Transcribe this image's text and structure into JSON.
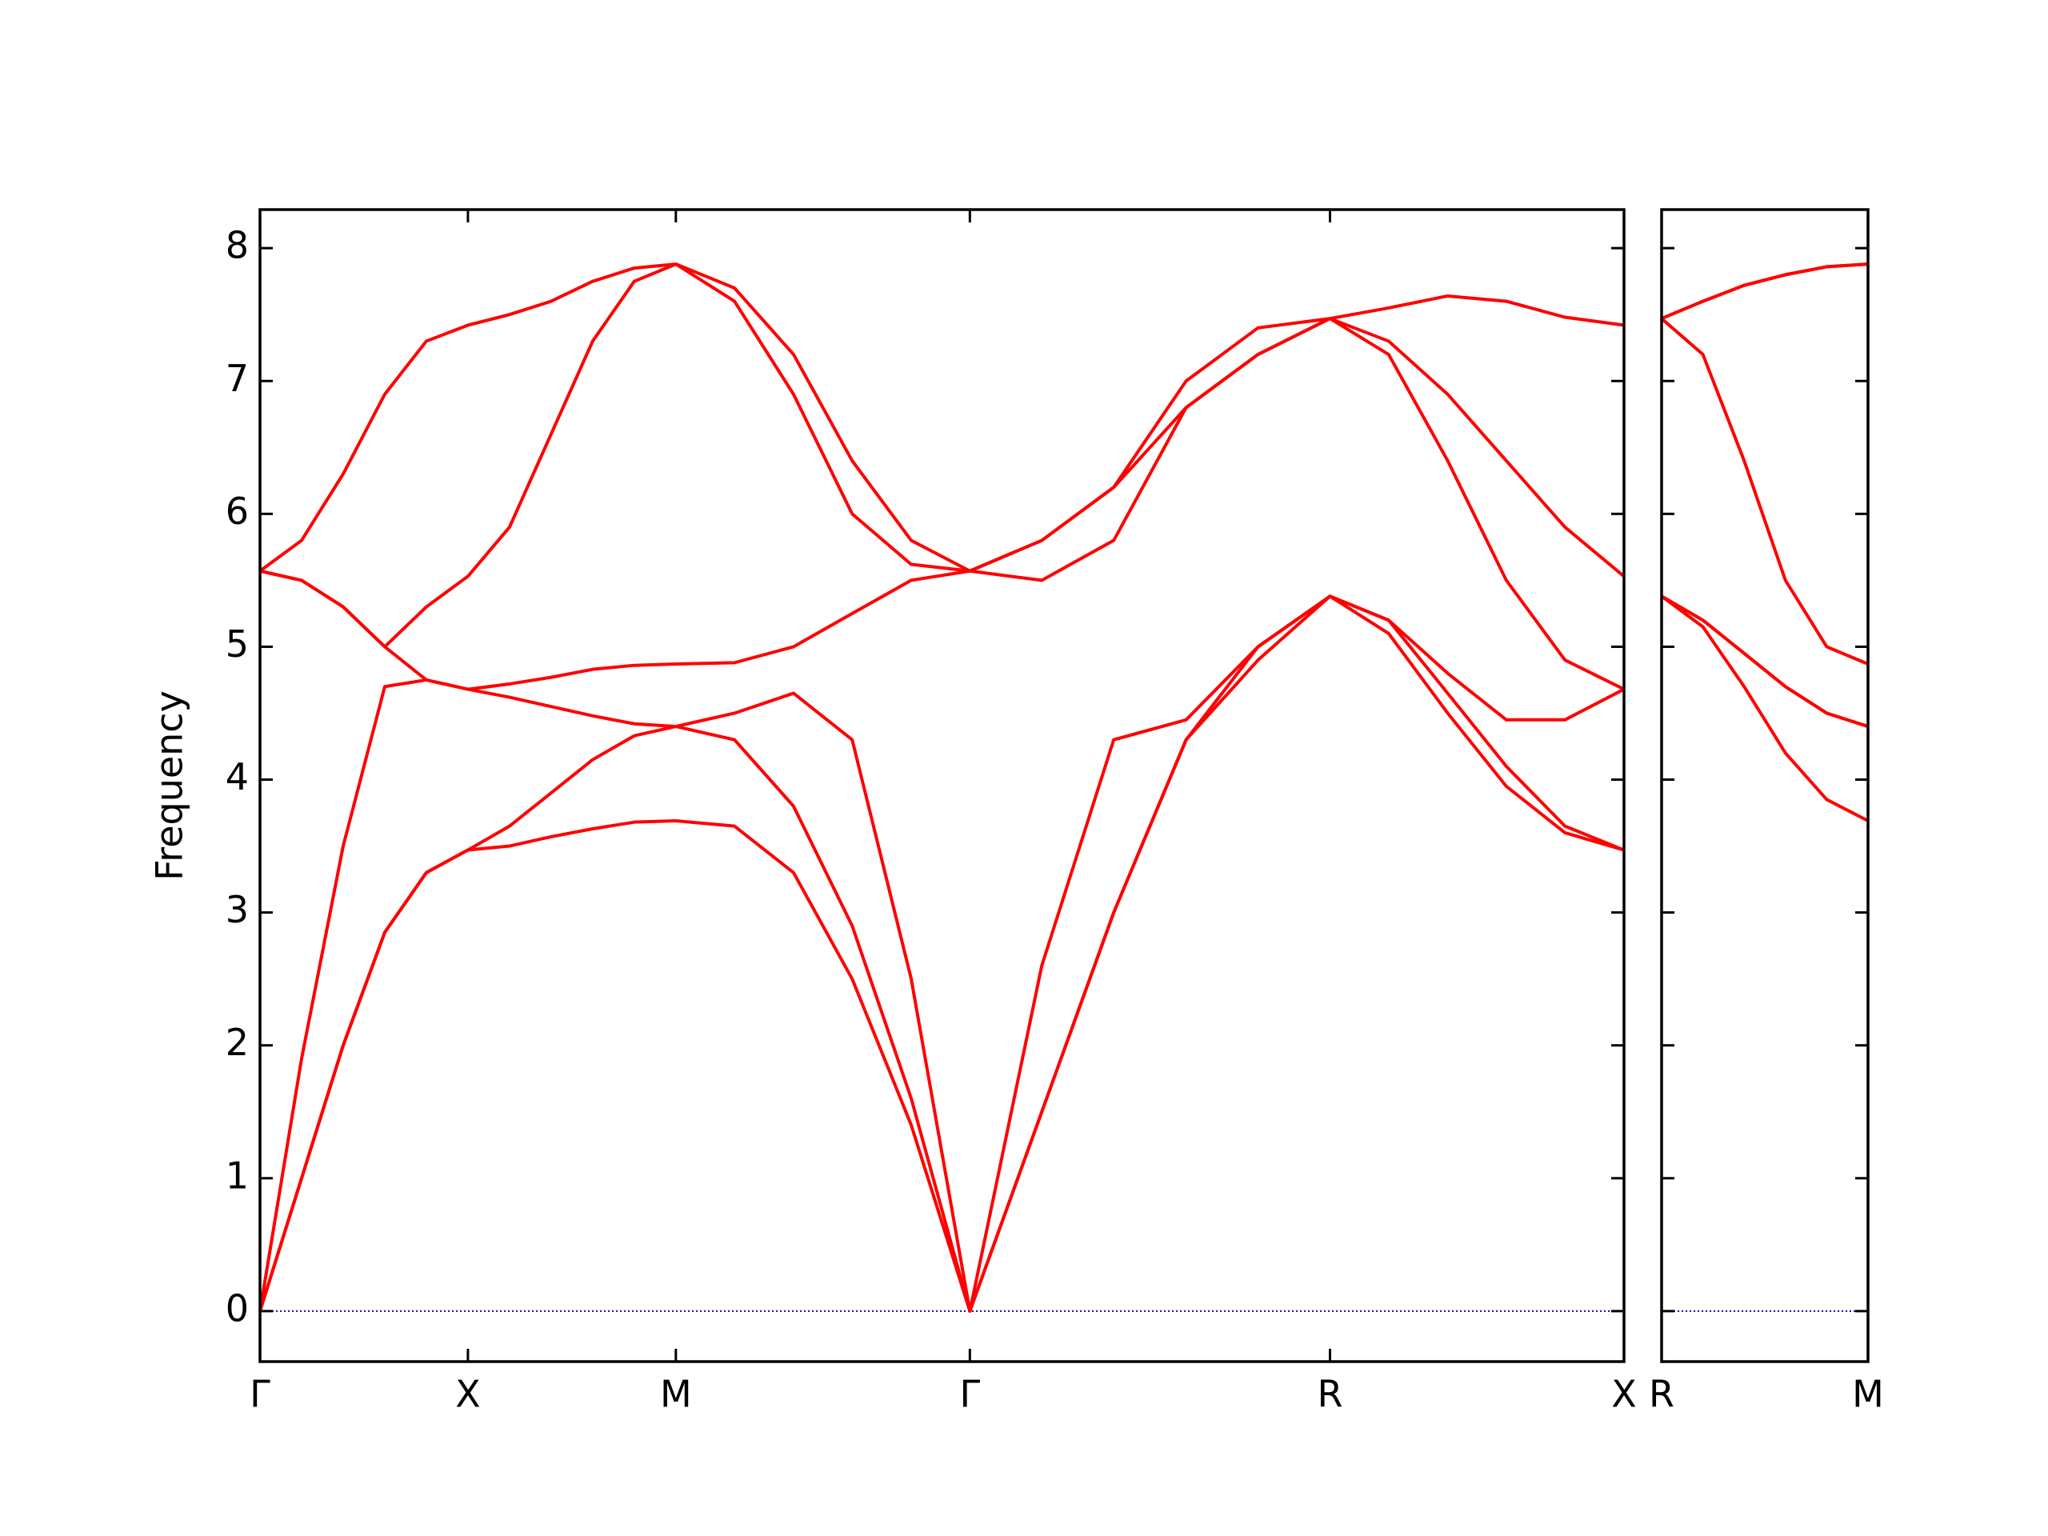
{
  "chart_data": [
    {
      "type": "line",
      "ylabel": "Frequency",
      "x": [
        0,
        0.1,
        0.2,
        0.3,
        0.4,
        0.5,
        0.6,
        0.7,
        0.8,
        0.9,
        1.0,
        1.141,
        1.283,
        1.424,
        1.566,
        1.707,
        1.88,
        2.053,
        2.227,
        2.4,
        2.573,
        2.714,
        2.856,
        2.997,
        3.138,
        3.28
      ],
      "xlim": [
        0,
        3.28
      ],
      "xticks": [
        {
          "value": 0,
          "label": "Γ"
        },
        {
          "value": 0.5,
          "label": "X"
        },
        {
          "value": 1.0,
          "label": "M"
        },
        {
          "value": 1.707,
          "label": "Γ"
        },
        {
          "value": 2.573,
          "label": "R"
        },
        {
          "value": 3.28,
          "label": "X"
        }
      ],
      "ylim": [
        -0.38,
        8.29
      ],
      "yticks": [
        0,
        1,
        2,
        3,
        4,
        5,
        6,
        7,
        8
      ],
      "zero_line": {
        "value": 0,
        "color": "#0000cc"
      },
      "series": [
        {
          "color": "#ff0000",
          "values": [
            0,
            1.0,
            2.0,
            2.85,
            3.3,
            3.47,
            3.5,
            3.57,
            3.63,
            3.68,
            3.69,
            3.65,
            3.3,
            2.5,
            1.4,
            0,
            1.5,
            3.0,
            4.3,
            4.9,
            5.38,
            5.1,
            4.5,
            3.95,
            3.6,
            3.47
          ]
        },
        {
          "color": "#ff0000",
          "values": [
            0,
            1.0,
            2.0,
            2.85,
            3.3,
            3.47,
            3.65,
            3.9,
            4.15,
            4.33,
            4.4,
            4.3,
            3.8,
            2.9,
            1.6,
            0,
            1.5,
            3.0,
            4.3,
            5.0,
            5.38,
            5.2,
            4.65,
            4.1,
            3.65,
            3.47
          ]
        },
        {
          "color": "#ff0000",
          "values": [
            0,
            1.9,
            3.5,
            4.7,
            4.75,
            4.68,
            4.62,
            4.55,
            4.48,
            4.42,
            4.4,
            4.5,
            4.65,
            4.3,
            2.5,
            0,
            2.6,
            4.3,
            4.45,
            5.0,
            5.38,
            5.2,
            4.8,
            4.45,
            4.45,
            4.68
          ]
        },
        {
          "color": "#ff0000",
          "values": [
            5.57,
            5.5,
            5.3,
            5.0,
            4.75,
            4.68,
            4.72,
            4.77,
            4.83,
            4.86,
            4.87,
            4.88,
            5.0,
            5.25,
            5.5,
            5.57,
            5.5,
            5.8,
            6.8,
            7.2,
            7.47,
            7.2,
            6.4,
            5.5,
            4.9,
            4.68
          ]
        },
        {
          "color": "#ff0000",
          "values": [
            5.57,
            5.5,
            5.3,
            5.0,
            5.3,
            5.53,
            5.9,
            6.6,
            7.3,
            7.75,
            7.88,
            7.6,
            6.9,
            6.0,
            5.62,
            5.57,
            5.8,
            6.2,
            6.8,
            7.2,
            7.47,
            7.3,
            6.9,
            6.4,
            5.9,
            5.53
          ]
        },
        {
          "color": "#ff0000",
          "values": [
            5.57,
            5.8,
            6.3,
            6.9,
            7.3,
            7.42,
            7.5,
            7.6,
            7.75,
            7.85,
            7.88,
            7.7,
            7.2,
            6.4,
            5.8,
            5.57,
            5.8,
            6.2,
            7.0,
            7.4,
            7.47,
            7.55,
            7.64,
            7.6,
            7.48,
            7.42
          ]
        }
      ]
    },
    {
      "type": "line",
      "x": [
        0,
        0.1,
        0.2,
        0.3,
        0.4,
        0.5
      ],
      "xlim": [
        0,
        0.5
      ],
      "xticks": [
        {
          "value": 0,
          "label": "R"
        },
        {
          "value": 0.5,
          "label": "M"
        }
      ],
      "ylim": [
        -0.38,
        8.29
      ],
      "yticks": [
        0,
        1,
        2,
        3,
        4,
        5,
        6,
        7,
        8
      ],
      "zero_line": {
        "value": 0,
        "color": "#0000cc"
      },
      "series": [
        {
          "color": "#ff0000",
          "values": [
            5.38,
            5.15,
            4.7,
            4.2,
            3.85,
            3.69
          ]
        },
        {
          "color": "#ff0000",
          "values": [
            5.38,
            5.2,
            4.95,
            4.7,
            4.5,
            4.4
          ]
        },
        {
          "color": "#ff0000",
          "values": [
            5.38,
            5.2,
            4.95,
            4.7,
            4.5,
            4.4
          ]
        },
        {
          "color": "#ff0000",
          "values": [
            7.47,
            7.2,
            6.4,
            5.5,
            5.0,
            4.87
          ]
        },
        {
          "color": "#ff0000",
          "values": [
            7.47,
            7.6,
            7.72,
            7.8,
            7.86,
            7.88
          ]
        },
        {
          "color": "#ff0000",
          "values": [
            7.47,
            7.6,
            7.72,
            7.8,
            7.86,
            7.88
          ]
        }
      ]
    }
  ]
}
